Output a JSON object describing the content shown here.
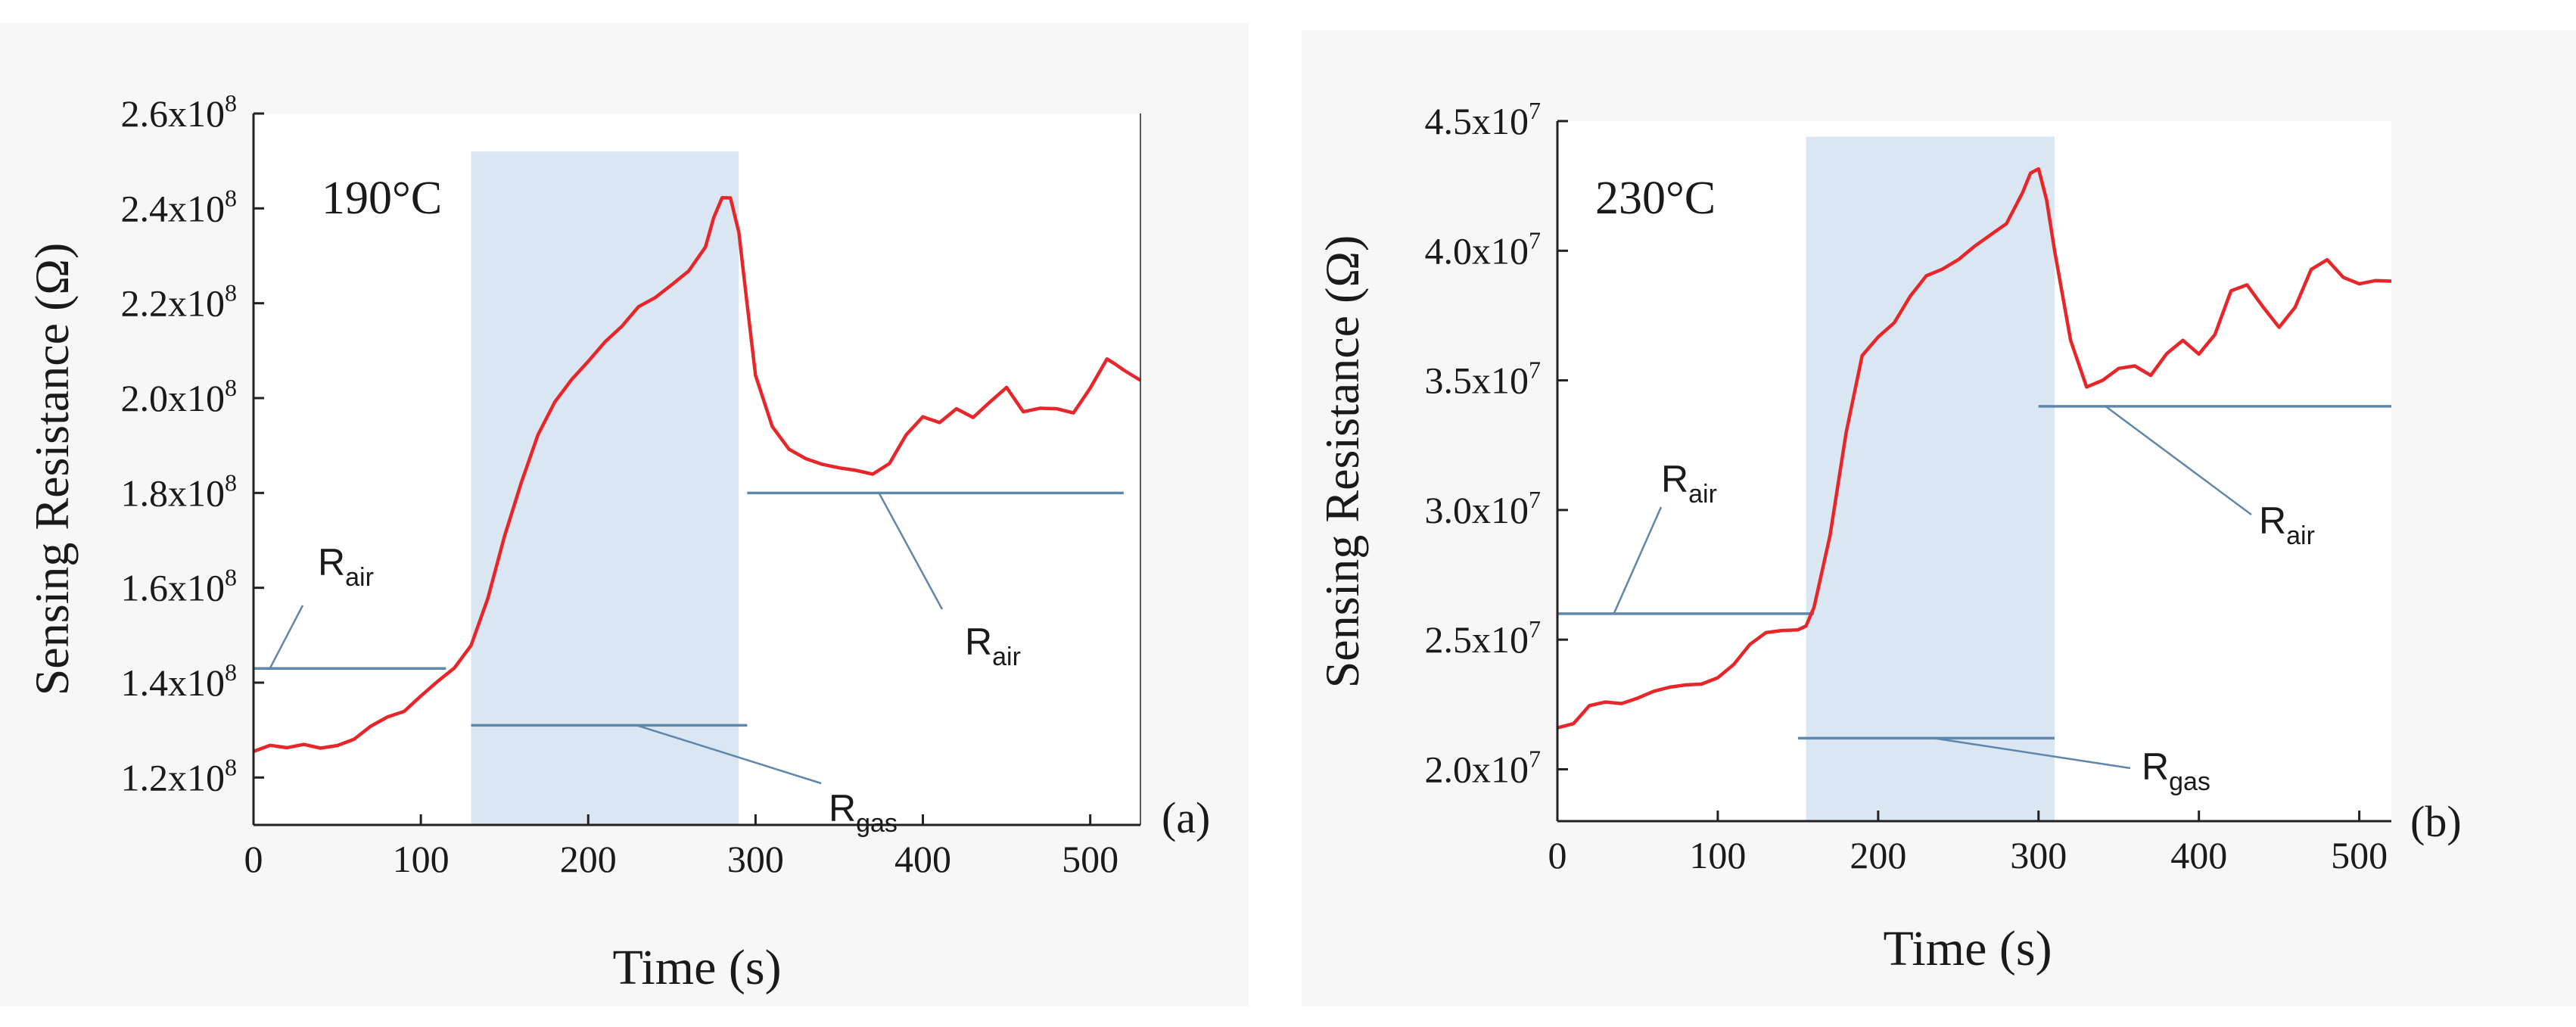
{
  "colors": {
    "curve": "#e8262a",
    "shade": "#dbe6f3",
    "annotation_line": "#5f86ab",
    "axis": "#222222",
    "panel_bg": "#f7f7f7"
  },
  "chart_data": [
    {
      "type": "line",
      "panel_label": "(a)",
      "temperature_label": "190°C",
      "xlabel": "Time (s)",
      "ylabel": "Sensing Resistance (Ω)",
      "xlim": [
        0,
        530
      ],
      "ylim": [
        110000000.0,
        260000000.0
      ],
      "x_ticks": [
        {
          "value": 0,
          "label": "0"
        },
        {
          "value": 100,
          "label": "100"
        },
        {
          "value": 200,
          "label": "200"
        },
        {
          "value": 300,
          "label": "300"
        },
        {
          "value": 400,
          "label": "400"
        },
        {
          "value": 500,
          "label": "500"
        }
      ],
      "y_ticks": [
        {
          "value": 120000000.0,
          "mantissa": "1.2x10",
          "exponent": "8"
        },
        {
          "value": 140000000.0,
          "mantissa": "1.4x10",
          "exponent": "8"
        },
        {
          "value": 160000000.0,
          "mantissa": "1.6x10",
          "exponent": "8"
        },
        {
          "value": 180000000.0,
          "mantissa": "1.8x10",
          "exponent": "8"
        },
        {
          "value": 200000000.0,
          "mantissa": "2.0x10",
          "exponent": "8"
        },
        {
          "value": 220000000.0,
          "mantissa": "2.2x10",
          "exponent": "8"
        },
        {
          "value": 240000000.0,
          "mantissa": "2.4x10",
          "exponent": "8"
        },
        {
          "value": 260000000.0,
          "mantissa": "2.6x10",
          "exponent": "8"
        }
      ],
      "gas_exposure": {
        "x_start": 130,
        "x_end": 290,
        "y_bottom": 110000000.0,
        "y_top": 252000000.0
      },
      "series": [
        {
          "name": "sensing resistance",
          "x": [
            0,
            10,
            20,
            30,
            40,
            50,
            60,
            70,
            80,
            90,
            100,
            110,
            120,
            130,
            140,
            150,
            160,
            170,
            180,
            190,
            200,
            210,
            220,
            230,
            240,
            250,
            260,
            270,
            275,
            280,
            285,
            290,
            295,
            300,
            310,
            320,
            330,
            340,
            350,
            360,
            370,
            380,
            390,
            400,
            410,
            420,
            430,
            440,
            450,
            460,
            470,
            480,
            490,
            500,
            510,
            515,
            520,
            530
          ],
          "y": [
            125500000.0,
            127000000.0,
            126500000.0,
            127000000.0,
            126000000.0,
            126500000.0,
            128000000.0,
            131000000.0,
            133000000.0,
            134000000.0,
            137000000.0,
            140000000.0,
            143000000.0,
            148000000.0,
            158000000.0,
            171000000.0,
            182000000.0,
            192000000.0,
            199000000.0,
            204000000.0,
            208000000.0,
            212000000.0,
            215000000.0,
            219000000.0,
            221000000.0,
            224000000.0,
            227000000.0,
            232000000.0,
            238000000.0,
            242000000.0,
            242000000.0,
            235000000.0,
            220000000.0,
            205000000.0,
            194000000.0,
            189000000.0,
            187000000.0,
            186000000.0,
            185500000.0,
            185000000.0,
            184000000.0,
            186000000.0,
            192000000.0,
            196000000.0,
            195000000.0,
            198000000.0,
            196000000.0,
            199000000.0,
            202000000.0,
            197000000.0,
            198000000.0,
            198000000.0,
            197000000.0,
            202000000.0,
            208000000.0,
            207000000.0,
            206000000.0,
            204000000.0
          ]
        }
      ],
      "annotations": [
        {
          "main": "R",
          "sub": "air",
          "ref_line": {
            "x1": 0,
            "x2": 115,
            "y": 143000000.0
          }
        },
        {
          "main": "R",
          "sub": "air",
          "ref_line": {
            "x1": 295,
            "x2": 520,
            "y": 180000000.0
          }
        },
        {
          "main": "R",
          "sub": "gas",
          "ref_line": {
            "x1": 130,
            "x2": 295,
            "y": 131000000.0
          }
        }
      ]
    },
    {
      "type": "line",
      "panel_label": "(b)",
      "temperature_label": "230°C",
      "xlabel": "Time (s)",
      "ylabel": "Sensing Resistance (Ω)",
      "xlim": [
        0,
        520
      ],
      "ylim": [
        18000000.0,
        45000000.0
      ],
      "x_ticks": [
        {
          "value": 0,
          "label": "0"
        },
        {
          "value": 100,
          "label": "100"
        },
        {
          "value": 200,
          "label": "200"
        },
        {
          "value": 300,
          "label": "300"
        },
        {
          "value": 400,
          "label": "400"
        },
        {
          "value": 500,
          "label": "500"
        }
      ],
      "y_ticks": [
        {
          "value": 20000000.0,
          "mantissa": "2.0x10",
          "exponent": "7"
        },
        {
          "value": 25000000.0,
          "mantissa": "2.5x10",
          "exponent": "7"
        },
        {
          "value": 30000000.0,
          "mantissa": "3.0x10",
          "exponent": "7"
        },
        {
          "value": 35000000.0,
          "mantissa": "3.5x10",
          "exponent": "7"
        },
        {
          "value": 40000000.0,
          "mantissa": "4.0x10",
          "exponent": "7"
        },
        {
          "value": 45000000.0,
          "mantissa": "4.5x10",
          "exponent": "7"
        }
      ],
      "gas_exposure": {
        "x_start": 155,
        "x_end": 310,
        "y_bottom": 18000000.0,
        "y_top": 44400000.0
      },
      "series": [
        {
          "name": "sensing resistance",
          "x": [
            0,
            10,
            20,
            30,
            40,
            50,
            60,
            70,
            80,
            90,
            100,
            110,
            120,
            130,
            140,
            150,
            155,
            160,
            170,
            180,
            190,
            200,
            210,
            220,
            230,
            240,
            250,
            260,
            270,
            280,
            290,
            295,
            300,
            305,
            310,
            320,
            330,
            340,
            350,
            360,
            370,
            380,
            390,
            400,
            410,
            420,
            430,
            440,
            450,
            460,
            470,
            480,
            490,
            500,
            510,
            520
          ],
          "y": [
            21600000.0,
            21800000.0,
            22500000.0,
            22600000.0,
            22500000.0,
            22700000.0,
            23000000.0,
            23200000.0,
            23300000.0,
            23300000.0,
            23500000.0,
            24000000.0,
            24800000.0,
            25300000.0,
            25400000.0,
            25400000.0,
            25500000.0,
            26200000.0,
            29000000.0,
            33000000.0,
            36000000.0,
            36700000.0,
            37200000.0,
            38200000.0,
            39000000.0,
            39300000.0,
            39700000.0,
            40200000.0,
            40600000.0,
            41000000.0,
            42200000.0,
            43000000.0,
            43200000.0,
            42000000.0,
            40000000.0,
            36500000.0,
            34700000.0,
            35000000.0,
            35500000.0,
            35600000.0,
            35200000.0,
            36000000.0,
            36500000.0,
            36000000.0,
            36800000.0,
            38500000.0,
            38700000.0,
            37800000.0,
            37000000.0,
            37800000.0,
            39300000.0,
            39700000.0,
            39000000.0,
            38700000.0,
            38800000.0,
            38800000.0
          ]
        }
      ],
      "annotations": [
        {
          "main": "R",
          "sub": "air",
          "ref_line": {
            "x1": 0,
            "x2": 160,
            "y": 26000000.0
          }
        },
        {
          "main": "R",
          "sub": "air",
          "ref_line": {
            "x1": 300,
            "x2": 520,
            "y": 34000000.0
          }
        },
        {
          "main": "R",
          "sub": "gas",
          "ref_line": {
            "x1": 150,
            "x2": 310,
            "y": 21200000.0
          }
        }
      ]
    }
  ]
}
